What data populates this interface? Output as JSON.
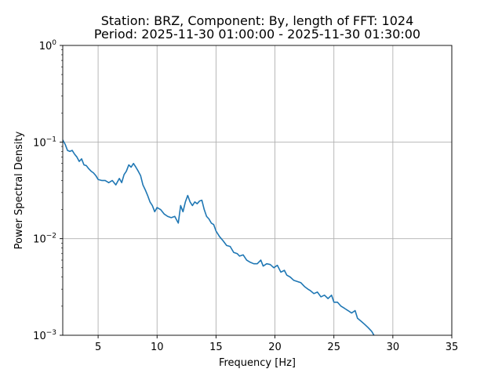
{
  "chart_data": {
    "type": "line",
    "title": "Station: BRZ, Component: By, length of FFT: 1024",
    "subtitle": "Period: 2025-11-30 01:00:00 - 2025-11-30 01:30:00",
    "xlabel": "Frequency [Hz]",
    "ylabel": "Power Spectral Density",
    "xlim": [
      2.0,
      35.0
    ],
    "ylim": [
      0.001,
      1.0
    ],
    "yscale": "log",
    "grid": true,
    "line_color": "#1f77b4",
    "x_ticks": [
      {
        "value": 5,
        "label": "5"
      },
      {
        "value": 10,
        "label": "10"
      },
      {
        "value": 15,
        "label": "15"
      },
      {
        "value": 20,
        "label": "20"
      },
      {
        "value": 25,
        "label": "25"
      },
      {
        "value": 30,
        "label": "30"
      },
      {
        "value": 35,
        "label": "35"
      }
    ],
    "y_ticks": [
      {
        "value": 0.001,
        "base": "10",
        "exp": "−3"
      },
      {
        "value": 0.01,
        "base": "10",
        "exp": "−2"
      },
      {
        "value": 0.1,
        "base": "10",
        "exp": "−1"
      },
      {
        "value": 1,
        "base": "10",
        "exp": "0"
      }
    ],
    "series": [
      {
        "x": [
          2.0,
          2.2,
          2.4,
          2.6,
          2.8,
          3.0,
          3.2,
          3.4,
          3.6,
          3.8,
          4.0,
          4.2,
          4.4,
          4.6,
          4.8,
          5.0,
          5.3,
          5.6,
          5.9,
          6.2,
          6.5,
          6.8,
          7.0,
          7.2,
          7.4,
          7.6,
          7.8,
          8.0,
          8.2,
          8.4,
          8.6,
          8.8,
          9.0,
          9.2,
          9.4,
          9.6,
          9.8,
          10.0,
          10.3,
          10.6,
          10.9,
          11.2,
          11.5,
          11.8,
          12.0,
          12.2,
          12.4,
          12.6,
          12.8,
          13.0,
          13.2,
          13.4,
          13.6,
          13.8,
          14.0,
          14.2,
          14.4,
          14.6,
          14.8,
          15.0,
          15.3,
          15.6,
          15.9,
          16.2,
          16.5,
          16.8,
          17.0,
          17.3,
          17.6,
          17.9,
          18.2,
          18.5,
          18.8,
          19.0,
          19.3,
          19.6,
          19.9,
          20.2,
          20.5,
          20.8,
          21.0,
          21.3,
          21.6,
          21.9,
          22.2,
          22.5,
          22.8,
          23.0,
          23.3,
          23.6,
          23.9,
          24.2,
          24.5,
          24.8,
          25.0,
          25.3,
          25.6,
          25.9,
          26.2,
          26.5,
          26.8,
          27.0,
          27.3,
          27.6,
          27.9,
          28.2,
          28.4
        ],
        "y": [
          0.105,
          0.095,
          0.082,
          0.08,
          0.082,
          0.075,
          0.07,
          0.063,
          0.067,
          0.058,
          0.057,
          0.053,
          0.05,
          0.048,
          0.045,
          0.041,
          0.04,
          0.04,
          0.038,
          0.04,
          0.036,
          0.042,
          0.038,
          0.046,
          0.05,
          0.058,
          0.055,
          0.06,
          0.055,
          0.05,
          0.045,
          0.036,
          0.032,
          0.028,
          0.024,
          0.022,
          0.019,
          0.021,
          0.02,
          0.018,
          0.017,
          0.0165,
          0.017,
          0.0145,
          0.022,
          0.019,
          0.024,
          0.028,
          0.024,
          0.022,
          0.024,
          0.023,
          0.0245,
          0.025,
          0.02,
          0.017,
          0.016,
          0.0145,
          0.014,
          0.012,
          0.0105,
          0.0095,
          0.0085,
          0.0083,
          0.0072,
          0.007,
          0.0066,
          0.0068,
          0.006,
          0.0057,
          0.0055,
          0.0055,
          0.006,
          0.0052,
          0.0055,
          0.0054,
          0.005,
          0.0053,
          0.0045,
          0.0047,
          0.0042,
          0.004,
          0.0037,
          0.0036,
          0.0035,
          0.0032,
          0.003,
          0.0029,
          0.0027,
          0.0028,
          0.0025,
          0.0026,
          0.0024,
          0.0026,
          0.0022,
          0.0022,
          0.002,
          0.0019,
          0.0018,
          0.0017,
          0.0018,
          0.0015,
          0.0014,
          0.0013,
          0.0012,
          0.0011,
          0.001
        ]
      }
    ]
  }
}
